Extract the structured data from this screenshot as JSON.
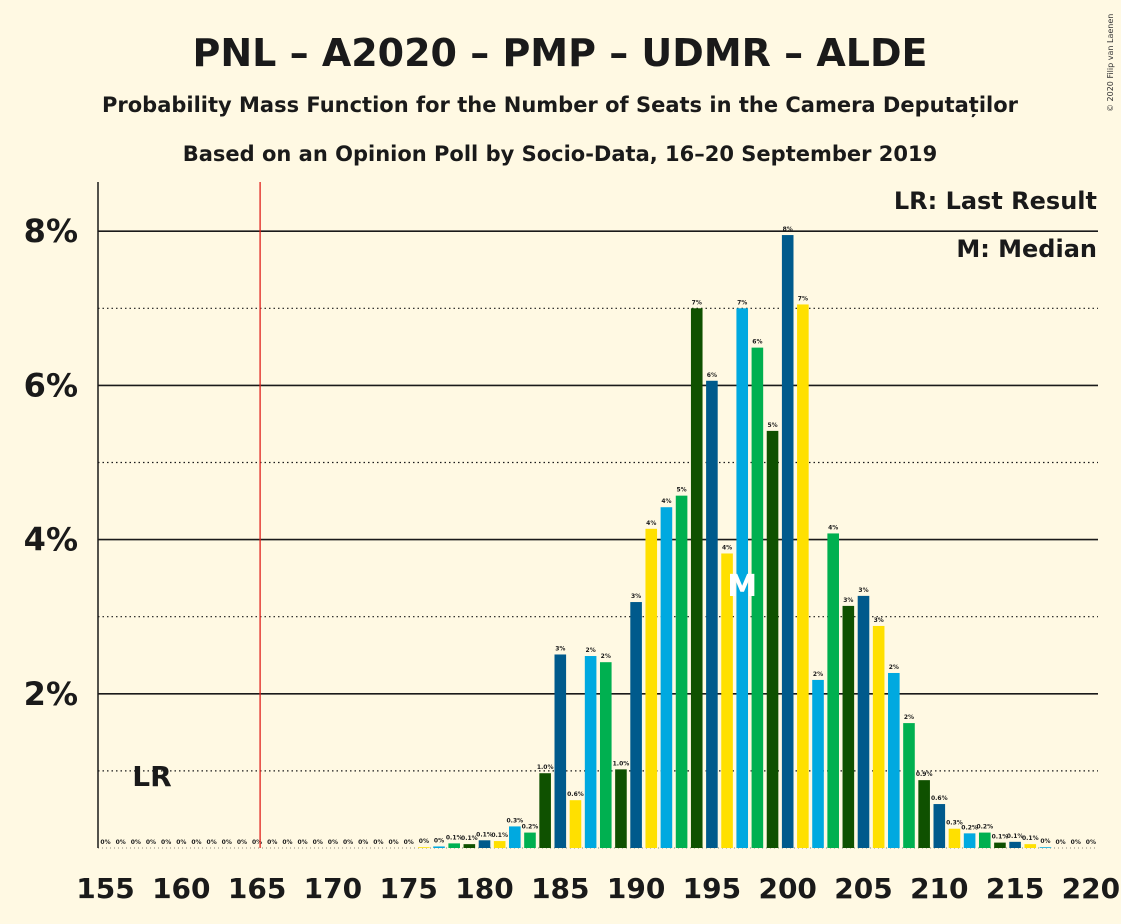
{
  "chart_data": {
    "type": "bar",
    "title": "PNL – A2020 – PMP – UDMR – ALDE",
    "subtitle_1": "Probability Mass Function for the Number of Seats in the Camera Deputaților",
    "subtitle_2": "Based on an Opinion Poll by Socio-Data, 16–20 September 2019",
    "copyright": "© 2020 Filip van Laenen",
    "legend": {
      "last_result": "LR: Last Result",
      "median": "M: Median"
    },
    "markers": {
      "last_result_label": "LR",
      "last_result_seat": 165,
      "median_label": "M",
      "median_seat": 197
    },
    "ylim": [
      0,
      8.7
    ],
    "yticks": [
      {
        "value": 2,
        "label": "2%"
      },
      {
        "value": 4,
        "label": "4%"
      },
      {
        "value": 6,
        "label": "6%"
      },
      {
        "value": 8,
        "label": "8%"
      }
    ],
    "ydotted": [
      1,
      3,
      5,
      7
    ],
    "xlim": [
      155,
      220
    ],
    "xticks": [
      155,
      160,
      165,
      170,
      175,
      180,
      185,
      190,
      195,
      200,
      205,
      210,
      215,
      220
    ],
    "palette": [
      "#005A8C",
      "#FFE000",
      "#00A9E0",
      "#00B050",
      "#0F5100"
    ],
    "bars": [
      {
        "seat": 155,
        "value": 0,
        "label": "0%"
      },
      {
        "seat": 156,
        "value": 0,
        "label": "0%"
      },
      {
        "seat": 157,
        "value": 0,
        "label": "0%"
      },
      {
        "seat": 158,
        "value": 0,
        "label": "0%"
      },
      {
        "seat": 159,
        "value": 0,
        "label": "0%"
      },
      {
        "seat": 160,
        "value": 0,
        "label": "0%"
      },
      {
        "seat": 161,
        "value": 0,
        "label": "0%"
      },
      {
        "seat": 162,
        "value": 0,
        "label": "0%"
      },
      {
        "seat": 163,
        "value": 0,
        "label": "0%"
      },
      {
        "seat": 164,
        "value": 0,
        "label": "0%"
      },
      {
        "seat": 165,
        "value": 0,
        "label": "0%"
      },
      {
        "seat": 166,
        "value": 0,
        "label": "0%"
      },
      {
        "seat": 167,
        "value": 0,
        "label": "0%"
      },
      {
        "seat": 168,
        "value": 0,
        "label": "0%"
      },
      {
        "seat": 169,
        "value": 0,
        "label": "0%"
      },
      {
        "seat": 170,
        "value": 0,
        "label": "0%"
      },
      {
        "seat": 171,
        "value": 0,
        "label": "0%"
      },
      {
        "seat": 172,
        "value": 0,
        "label": "0%"
      },
      {
        "seat": 173,
        "value": 0,
        "label": "0%"
      },
      {
        "seat": 174,
        "value": 0,
        "label": "0%"
      },
      {
        "seat": 175,
        "value": 0,
        "label": "0%"
      },
      {
        "seat": 176,
        "value": 0.01,
        "label": "0%"
      },
      {
        "seat": 177,
        "value": 0.02,
        "label": "0%"
      },
      {
        "seat": 178,
        "value": 0.06,
        "label": "0.1%"
      },
      {
        "seat": 179,
        "value": 0.05,
        "label": "0.1%"
      },
      {
        "seat": 180,
        "value": 0.1,
        "label": "0.1%"
      },
      {
        "seat": 181,
        "value": 0.09,
        "label": "0.1%"
      },
      {
        "seat": 182,
        "value": 0.28,
        "label": "0.3%"
      },
      {
        "seat": 183,
        "value": 0.2,
        "label": "0.2%"
      },
      {
        "seat": 184,
        "value": 0.97,
        "label": "1.0%"
      },
      {
        "seat": 185,
        "value": 2.51,
        "label": "3%"
      },
      {
        "seat": 186,
        "value": 0.62,
        "label": "0.6%"
      },
      {
        "seat": 187,
        "value": 2.49,
        "label": "2%"
      },
      {
        "seat": 188,
        "value": 2.41,
        "label": "2%"
      },
      {
        "seat": 189,
        "value": 1.02,
        "label": "1.0%"
      },
      {
        "seat": 190,
        "value": 3.19,
        "label": "3%"
      },
      {
        "seat": 191,
        "value": 4.14,
        "label": "4%"
      },
      {
        "seat": 192,
        "value": 4.42,
        "label": "4%"
      },
      {
        "seat": 193,
        "value": 4.57,
        "label": "5%"
      },
      {
        "seat": 194,
        "value": 7.0,
        "label": "7%"
      },
      {
        "seat": 195,
        "value": 6.06,
        "label": "6%"
      },
      {
        "seat": 196,
        "value": 3.82,
        "label": "4%"
      },
      {
        "seat": 197,
        "value": 7.0,
        "label": "7%"
      },
      {
        "seat": 198,
        "value": 6.49,
        "label": "6%"
      },
      {
        "seat": 199,
        "value": 5.41,
        "label": "5%"
      },
      {
        "seat": 200,
        "value": 7.95,
        "label": "8%"
      },
      {
        "seat": 201,
        "value": 7.05,
        "label": "7%"
      },
      {
        "seat": 202,
        "value": 2.18,
        "label": "2%"
      },
      {
        "seat": 203,
        "value": 4.08,
        "label": "4%"
      },
      {
        "seat": 204,
        "value": 3.14,
        "label": "3%"
      },
      {
        "seat": 205,
        "value": 3.27,
        "label": "3%"
      },
      {
        "seat": 206,
        "value": 2.88,
        "label": "3%"
      },
      {
        "seat": 207,
        "value": 2.27,
        "label": "2%"
      },
      {
        "seat": 208,
        "value": 1.62,
        "label": "2%"
      },
      {
        "seat": 209,
        "value": 0.88,
        "label": "0.9%"
      },
      {
        "seat": 210,
        "value": 0.57,
        "label": "0.6%"
      },
      {
        "seat": 211,
        "value": 0.25,
        "label": "0.3%"
      },
      {
        "seat": 212,
        "value": 0.19,
        "label": "0.2%"
      },
      {
        "seat": 213,
        "value": 0.2,
        "label": "0.2%"
      },
      {
        "seat": 214,
        "value": 0.07,
        "label": "0.1%"
      },
      {
        "seat": 215,
        "value": 0.08,
        "label": "0.1%"
      },
      {
        "seat": 216,
        "value": 0.05,
        "label": "0.1%"
      },
      {
        "seat": 217,
        "value": 0.01,
        "label": "0%"
      },
      {
        "seat": 218,
        "value": 0,
        "label": "0%"
      },
      {
        "seat": 219,
        "value": 0,
        "label": "0%"
      },
      {
        "seat": 220,
        "value": 0,
        "label": "0%"
      }
    ]
  }
}
